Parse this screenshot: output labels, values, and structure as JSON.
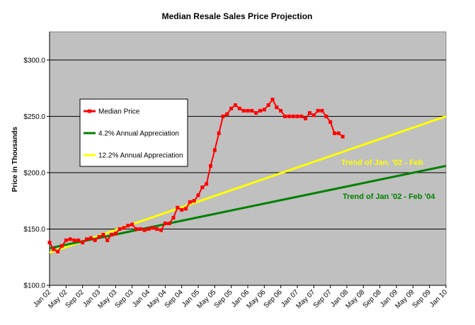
{
  "chart_data": {
    "type": "line",
    "title": "Median Resale Sales Price Projection",
    "ylabel": "Price in Thousands",
    "xlabel": "",
    "ylim": [
      100,
      325
    ],
    "y_ticks": [
      "$100.0",
      "$150.0",
      "$200.0",
      "$250.0",
      "$300.0"
    ],
    "y_tick_values": [
      100,
      150,
      200,
      250,
      300
    ],
    "x_ticks": [
      "Jan 02",
      "May 02",
      "Sep 02",
      "Jan 03",
      "May 03",
      "Sep 03",
      "Jan 04",
      "May 04",
      "Sep 04",
      "Jan 05",
      "May 05",
      "Sep 05",
      "Jan 06",
      "May 06",
      "Sep 06",
      "Jan 07",
      "May 07",
      "Sep 07",
      "Jan 08",
      "May 08",
      "Sep 08",
      "Jan 09",
      "May 09",
      "Sep 09",
      "Jan 10"
    ],
    "x_tick_months": [
      0,
      4,
      8,
      12,
      16,
      20,
      24,
      28,
      32,
      36,
      40,
      44,
      48,
      52,
      56,
      60,
      64,
      68,
      72,
      76,
      80,
      84,
      88,
      92,
      96
    ],
    "x_range_months": [
      0,
      96
    ],
    "plot_background": "#c0c0c0",
    "grid": true,
    "legend_position": "inside-left",
    "series": [
      {
        "name": "Median Price",
        "color": "#ff0000",
        "marker": "square",
        "x_months": [
          0,
          1,
          2,
          3,
          4,
          5,
          6,
          7,
          8,
          9,
          10,
          11,
          12,
          13,
          14,
          15,
          16,
          17,
          18,
          19,
          20,
          21,
          22,
          23,
          24,
          25,
          26,
          27,
          28,
          29,
          30,
          31,
          32,
          33,
          34,
          35,
          36,
          37,
          38,
          39,
          40,
          41,
          42,
          43,
          44,
          45,
          46,
          47,
          48,
          49,
          50,
          51,
          52,
          53,
          54,
          55,
          56,
          57,
          58,
          59,
          60,
          61,
          62,
          63,
          64,
          65,
          66,
          67,
          68,
          69,
          70,
          71
        ],
        "values": [
          138,
          132,
          130,
          135,
          140,
          141,
          140,
          140,
          138,
          141,
          142,
          140,
          143,
          145,
          140,
          145,
          146,
          150,
          151,
          153,
          154,
          150,
          150,
          149,
          150,
          151,
          150,
          149,
          155,
          155,
          160,
          169,
          167,
          168,
          174,
          175,
          180,
          187,
          190,
          206,
          220,
          235,
          250,
          252,
          257,
          260,
          257,
          255,
          255,
          255,
          253,
          255,
          256,
          260,
          265,
          258,
          255,
          250,
          250,
          250,
          250,
          250,
          248,
          253,
          251,
          255,
          255,
          250,
          245,
          235,
          235,
          232
        ]
      },
      {
        "name": "4.2% Annual Appreciation",
        "color": "#008000",
        "x_months": [
          0,
          96
        ],
        "values": [
          133,
          206
        ]
      },
      {
        "name": "12.2% Annual Appreciation",
        "color": "#ffff00",
        "x_months": [
          0,
          96
        ],
        "values": [
          129,
          250
        ]
      }
    ],
    "annotations": [
      {
        "text": "Trend of Jan. '02 - Feb",
        "color": "#ffff00"
      },
      {
        "text": "Trend of Jan '02 - Feb '04",
        "color": "#008000"
      }
    ]
  }
}
